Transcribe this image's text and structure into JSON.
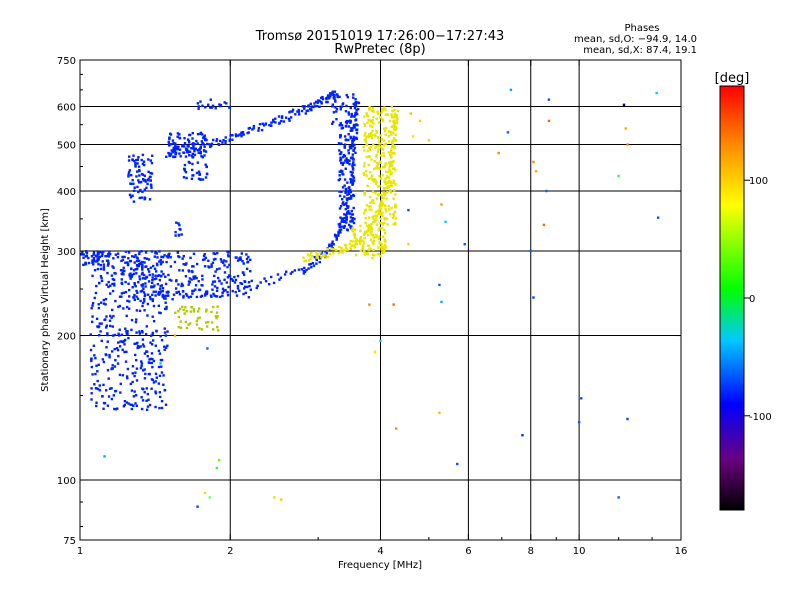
{
  "chart_data": {
    "type": "scatter",
    "title": "Tromsø 20151019 17:26:00−17:27:43",
    "subtitle": "RwPretec (8p)",
    "xlabel": "Frequency [MHz]",
    "ylabel": "Stationary phase Virtual Height [km]",
    "x_scale": "log",
    "y_scale": "log",
    "xlim": [
      1,
      16
    ],
    "ylim": [
      75,
      750
    ],
    "x_ticks": [
      "1",
      "2",
      "4",
      "6",
      "8",
      "10",
      "16"
    ],
    "y_ticks": [
      "75",
      "100",
      "200",
      "300",
      "400",
      "500",
      "600",
      "750"
    ],
    "x_grid": [
      2,
      4,
      6,
      8,
      10
    ],
    "y_grid": [
      100,
      200,
      300,
      400,
      500,
      600
    ],
    "grid": true,
    "colorbar": {
      "label": "[deg]",
      "range": [
        -180,
        180
      ],
      "ticks": [
        "100",
        "0",
        "-100"
      ],
      "colors": [
        "#000000",
        "#6a0080",
        "#0000ff",
        "#00c8ff",
        "#00ff00",
        "#ffff00",
        "#ff8c00",
        "#ff0000"
      ]
    },
    "legend_text": {
      "heading": "Phases",
      "line_o": "mean, sd,O: −94.9, 14.0",
      "line_x": "mean, sd,X:  87.4, 19.1"
    },
    "series": [
      {
        "name": "",
        "clusters": [
          {
            "color": "#0022ff",
            "fmin": 1.05,
            "fmax": 1.5,
            "hmin": 140,
            "hmax": 300,
            "count": 420
          },
          {
            "color": "#0022ff",
            "fmin": 1.0,
            "fmax": 1.15,
            "hmin": 280,
            "hmax": 300,
            "count": 60
          },
          {
            "color": "#0022ff",
            "fmin": 1.25,
            "fmax": 1.4,
            "hmin": 380,
            "hmax": 480,
            "count": 80
          },
          {
            "color": "#0022ff",
            "fmin": 1.5,
            "fmax": 1.8,
            "hmin": 470,
            "hmax": 530,
            "count": 90
          },
          {
            "color": "#0022ff",
            "fmin": 1.6,
            "fmax": 1.8,
            "hmin": 420,
            "hmax": 460,
            "count": 30
          },
          {
            "color": "#0022ff",
            "fmin": 1.2,
            "fmax": 2.2,
            "hmin": 240,
            "hmax": 300,
            "count": 260
          },
          {
            "color": "#0022ff",
            "fmin": 1.7,
            "fmax": 2.0,
            "hmin": 590,
            "hmax": 620,
            "count": 20
          },
          {
            "color": "#0022ff",
            "fmin": 3.2,
            "fmax": 3.6,
            "hmin": 540,
            "hmax": 640,
            "count": 40
          },
          {
            "color": "#0022ff",
            "fmin": 3.3,
            "fmax": 3.55,
            "hmin": 330,
            "hmax": 560,
            "count": 150
          },
          {
            "color": "#aacc00",
            "fmin": 1.55,
            "fmax": 1.9,
            "hmin": 205,
            "hmax": 230,
            "count": 45
          },
          {
            "color": "#e6e600",
            "fmin": 3.5,
            "fmax": 4.1,
            "hmin": 290,
            "hmax": 340,
            "count": 90
          },
          {
            "color": "#e6e600",
            "fmin": 3.7,
            "fmax": 4.3,
            "hmin": 340,
            "hmax": 600,
            "count": 260
          },
          {
            "color": "#0022ff",
            "fmin": 1.55,
            "fmax": 1.6,
            "hmin": 320,
            "hmax": 345,
            "count": 10
          }
        ],
        "curves": [
          {
            "color": "#0022ff",
            "points": [
              [
                1.35,
                240
              ],
              [
                2.0,
                248
              ],
              [
                2.8,
                272
              ],
              [
                3.2,
                305
              ],
              [
                3.4,
                350
              ],
              [
                3.5,
                420
              ],
              [
                3.55,
                520
              ],
              [
                3.6,
                620
              ]
            ]
          },
          {
            "color": "#0022ff",
            "points": [
              [
                1.5,
                480
              ],
              [
                1.7,
                495
              ],
              [
                2.0,
                515
              ],
              [
                2.4,
                550
              ],
              [
                2.8,
                590
              ],
              [
                3.1,
                620
              ],
              [
                3.3,
                640
              ]
            ]
          },
          {
            "color": "#e6e600",
            "points": [
              [
                2.8,
                290
              ],
              [
                3.3,
                300
              ],
              [
                3.7,
                320
              ],
              [
                4.0,
                360
              ],
              [
                4.15,
                420
              ],
              [
                4.25,
                500
              ],
              [
                4.3,
                590
              ]
            ]
          }
        ],
        "scattered": [
          {
            "f": 1.12,
            "h": 112,
            "c": "#00aaff"
          },
          {
            "f": 1.9,
            "h": 110,
            "c": "#66ff00"
          },
          {
            "f": 1.88,
            "h": 106,
            "c": "#33ff33"
          },
          {
            "f": 1.78,
            "h": 94,
            "c": "#e6e600"
          },
          {
            "f": 1.82,
            "h": 92,
            "c": "#66ff66"
          },
          {
            "f": 1.72,
            "h": 88,
            "c": "#0044ff"
          },
          {
            "f": 2.45,
            "h": 92,
            "c": "#e6e600"
          },
          {
            "f": 2.53,
            "h": 91,
            "c": "#ffcc00"
          },
          {
            "f": 3.8,
            "h": 232,
            "c": "#ff8800"
          },
          {
            "f": 4.25,
            "h": 232,
            "c": "#ff6600"
          },
          {
            "f": 4.3,
            "h": 128,
            "c": "#ff8800"
          },
          {
            "f": 5.25,
            "h": 138,
            "c": "#ffbb00"
          },
          {
            "f": 5.7,
            "h": 108,
            "c": "#0055ff"
          },
          {
            "f": 5.25,
            "h": 255,
            "c": "#0066ff"
          },
          {
            "f": 5.3,
            "h": 235,
            "c": "#00aaff"
          },
          {
            "f": 5.3,
            "h": 375,
            "c": "#ff9900"
          },
          {
            "f": 5.4,
            "h": 345,
            "c": "#00ccff"
          },
          {
            "f": 5.9,
            "h": 310,
            "c": "#0055ff"
          },
          {
            "f": 4.0,
            "h": 195,
            "c": "#00ccff"
          },
          {
            "f": 3.9,
            "h": 185,
            "c": "#ffdd00"
          },
          {
            "f": 5.0,
            "h": 510,
            "c": "#ffcc00"
          },
          {
            "f": 6.9,
            "h": 480,
            "c": "#ff8800"
          },
          {
            "f": 7.2,
            "h": 530,
            "c": "#0066ff"
          },
          {
            "f": 7.3,
            "h": 650,
            "c": "#00aaff"
          },
          {
            "f": 8.1,
            "h": 460,
            "c": "#ff8800"
          },
          {
            "f": 8.2,
            "h": 440,
            "c": "#ffaa00"
          },
          {
            "f": 8.6,
            "h": 400,
            "c": "#0066ff"
          },
          {
            "f": 8.7,
            "h": 560,
            "c": "#ff6600"
          },
          {
            "f": 8.7,
            "h": 620,
            "c": "#0055ff"
          },
          {
            "f": 8.5,
            "h": 340,
            "c": "#ff6600"
          },
          {
            "f": 8.0,
            "h": 300,
            "c": "#0066ff"
          },
          {
            "f": 8.1,
            "h": 240,
            "c": "#0044ff"
          },
          {
            "f": 7.7,
            "h": 124,
            "c": "#0033ff"
          },
          {
            "f": 10.0,
            "h": 132,
            "c": "#0066ff"
          },
          {
            "f": 10.1,
            "h": 148,
            "c": "#0055ff"
          },
          {
            "f": 12.3,
            "h": 605,
            "c": "#0000aa"
          },
          {
            "f": 12.4,
            "h": 540,
            "c": "#ffaa00"
          },
          {
            "f": 12.5,
            "h": 500,
            "c": "#ff8800"
          },
          {
            "f": 12.0,
            "h": 430,
            "c": "#33ff33"
          },
          {
            "f": 14.3,
            "h": 640,
            "c": "#00ccff"
          },
          {
            "f": 14.4,
            "h": 352,
            "c": "#0055ff"
          },
          {
            "f": 12.5,
            "h": 134,
            "c": "#0044ff"
          },
          {
            "f": 12.0,
            "h": 92,
            "c": "#0066ff"
          },
          {
            "f": 3.8,
            "h": 592,
            "c": "#ffcc00"
          },
          {
            "f": 4.6,
            "h": 580,
            "c": "#ffbb00"
          },
          {
            "f": 4.65,
            "h": 520,
            "c": "#ffdd00"
          },
          {
            "f": 4.8,
            "h": 560,
            "c": "#ffcc00"
          },
          {
            "f": 4.55,
            "h": 310,
            "c": "#ffcc00"
          },
          {
            "f": 4.55,
            "h": 365,
            "c": "#0055ff"
          },
          {
            "f": 1.8,
            "h": 188,
            "c": "#0066ff"
          },
          {
            "f": 1.55,
            "h": 200,
            "c": "#ffaa00"
          },
          {
            "f": 1.45,
            "h": 175,
            "c": "#00ccff"
          }
        ]
      }
    ]
  }
}
